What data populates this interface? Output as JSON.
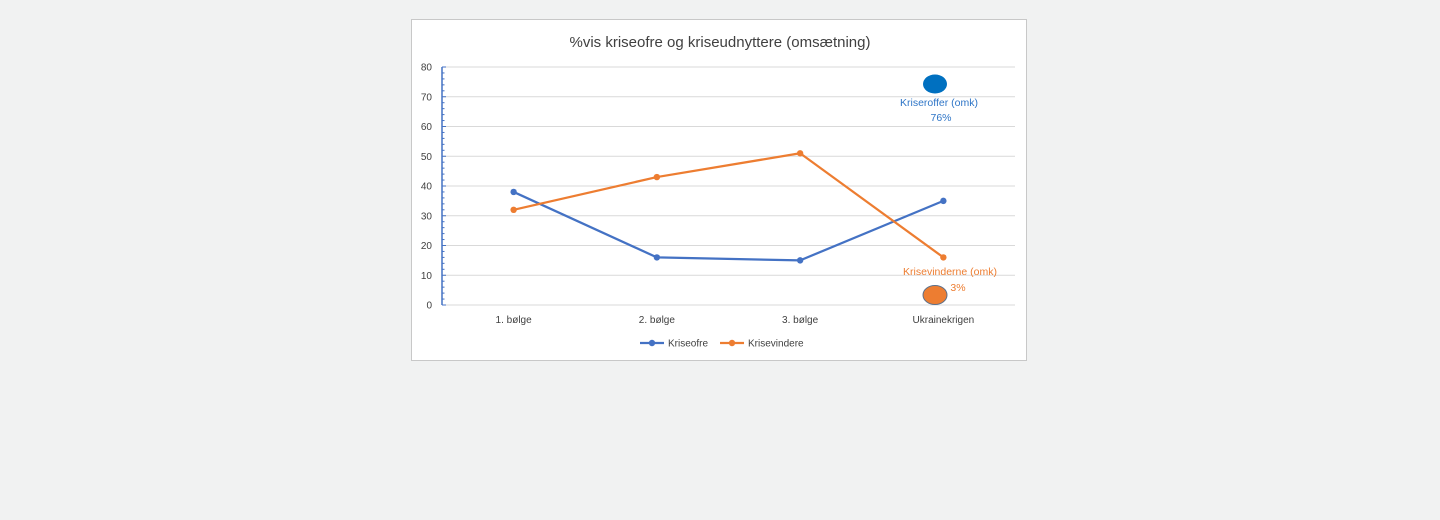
{
  "chart_data": {
    "type": "line",
    "title": "%vis kriseofre og kriseudnyttere (omsætning)",
    "categories": [
      "1. bølge",
      "2. bølge",
      "3. bølge",
      "Ukrainekrigen"
    ],
    "ylim": [
      0,
      80
    ],
    "yticks": [
      0,
      10,
      20,
      30,
      40,
      50,
      60,
      70,
      80
    ],
    "grid": true,
    "legend_position": "bottom",
    "series": [
      {
        "name": "Kriseofre",
        "color": "#4472c4",
        "values": [
          38,
          16,
          15,
          35
        ]
      },
      {
        "name": "Krisevindere",
        "color": "#ed7d31",
        "values": [
          32,
          43,
          51,
          16
        ]
      }
    ],
    "annotations": [
      {
        "label": "Kriseroffer (omk)",
        "value": "76%",
        "color": "#2e75c7",
        "marker_color": "#0070c0"
      },
      {
        "label": "Krisevinderne (omk)",
        "value": "3%",
        "color": "#ed7d31",
        "marker_color": "#ed7d31"
      }
    ]
  }
}
